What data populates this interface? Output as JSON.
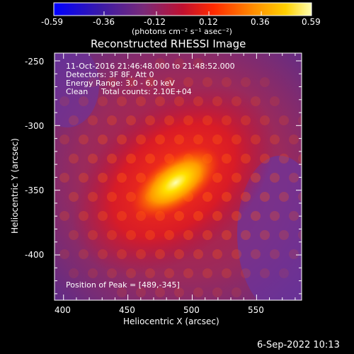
{
  "colorbar": {
    "ticks": [
      "-0.59",
      "-0.36",
      "-0.12",
      "0.12",
      "0.36",
      "0.59"
    ],
    "tick_values": [
      -0.59,
      -0.36,
      -0.12,
      0.12,
      0.36,
      0.59
    ],
    "units": "(photons cm⁻² s⁻¹ asec⁻²)",
    "range": [
      -0.59,
      0.59
    ]
  },
  "chart_data": {
    "type": "heatmap",
    "title": "Reconstructed RHESSI Image",
    "xlabel": "Heliocentric X (arcsec)",
    "ylabel": "Heliocentric Y (arcsec)",
    "xlim": [
      393,
      585
    ],
    "ylim": [
      -435,
      -244
    ],
    "xticks": [
      400,
      450,
      500,
      550
    ],
    "yticks": [
      -250,
      -300,
      -350,
      -400
    ],
    "peak": [
      489,
      -345
    ],
    "colormap": [
      "#0000ff",
      "#4b1f8f",
      "#7a3a7a",
      "#c0143c",
      "#ff4000",
      "#ff9a00",
      "#ffd700",
      "#ffffa0"
    ]
  },
  "annotations": {
    "time_range": "11-Oct-2016 21:46:48.000 to 21:48:52.000",
    "detectors": "Detectors: 3F 8F, Att 0",
    "energy": "Energy Range: 3.0 - 6.0 keV",
    "method": "Clean",
    "counts": "Total counts: 2.10E+04",
    "peak_position": "Position of Peak = [489,-345]"
  },
  "footer": {
    "timestamp": "6-Sep-2022 10:13"
  }
}
